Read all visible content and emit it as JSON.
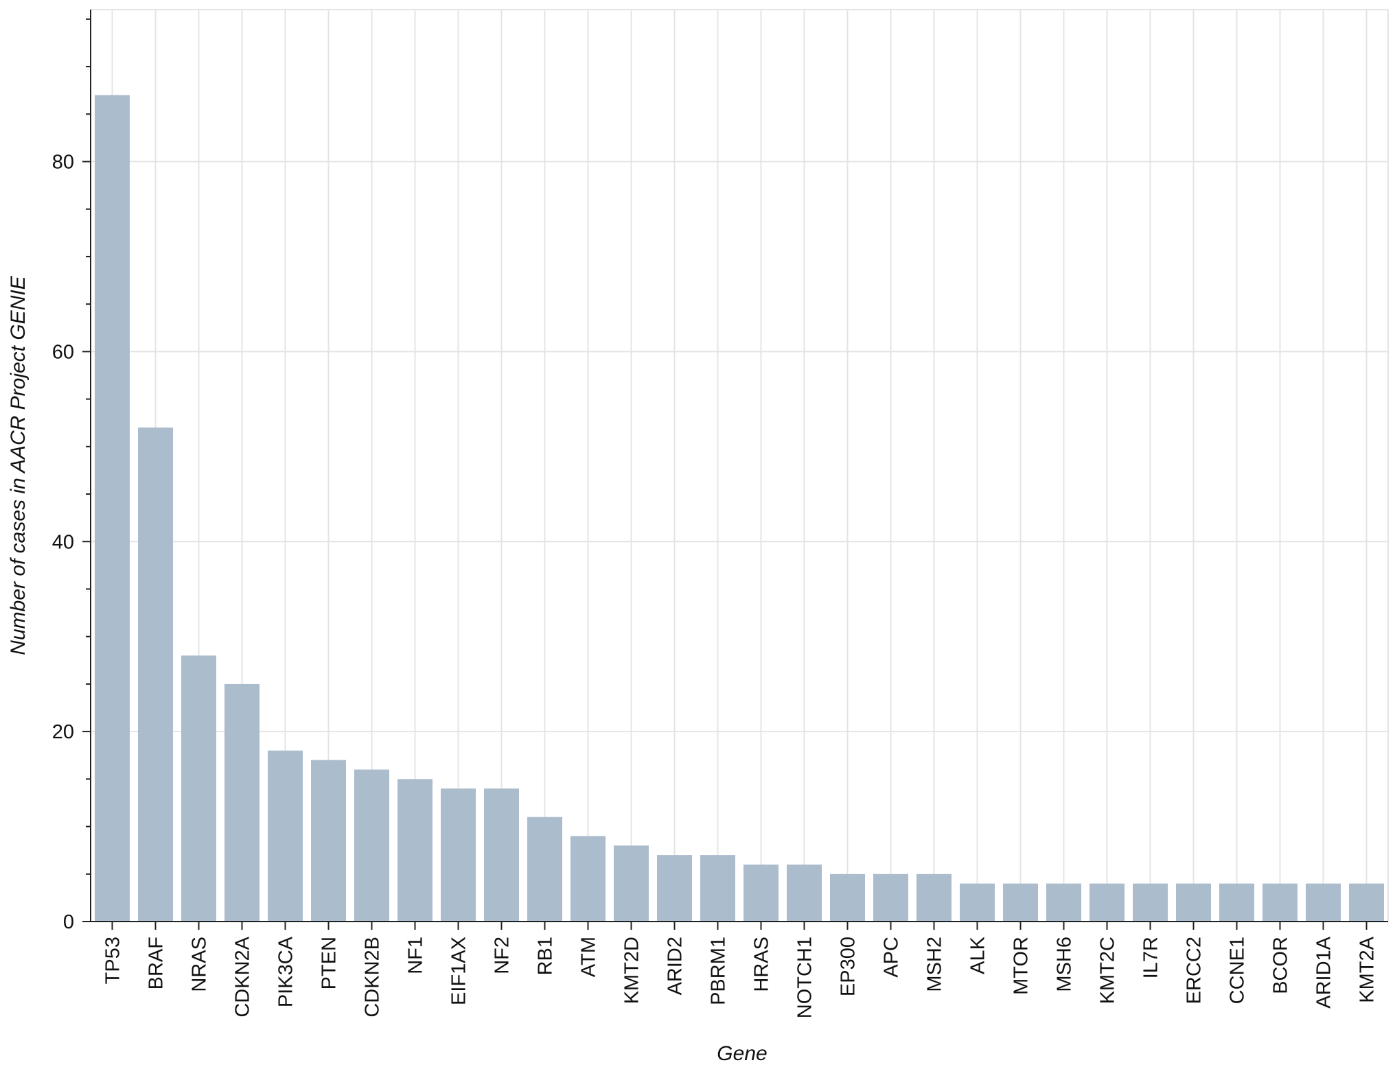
{
  "chart_data": {
    "type": "bar",
    "xlabel": "Gene",
    "ylabel": "Number of cases in AACR Project GENIE",
    "categories": [
      "TP53",
      "BRAF",
      "NRAS",
      "CDKN2A",
      "PIK3CA",
      "PTEN",
      "CDKN2B",
      "NF1",
      "EIF1AX",
      "NF2",
      "RB1",
      "ATM",
      "KMT2D",
      "ARID2",
      "PBRM1",
      "HRAS",
      "NOTCH1",
      "EP300",
      "APC",
      "MSH2",
      "ALK",
      "MTOR",
      "MSH6",
      "KMT2C",
      "IL7R",
      "ERCC2",
      "CCNE1",
      "BCOR",
      "ARID1A",
      "KMT2A"
    ],
    "values": [
      87,
      52,
      28,
      25,
      18,
      17,
      16,
      15,
      14,
      14,
      11,
      9,
      8,
      7,
      7,
      6,
      6,
      5,
      5,
      5,
      4,
      4,
      4,
      4,
      4,
      4,
      4,
      4,
      4,
      4
    ],
    "ylim": [
      0,
      96
    ],
    "yticks": [
      0,
      20,
      40,
      60,
      80
    ],
    "grid": true,
    "bar_color": "#abbccd",
    "grid_color": "#e4e4e4",
    "axis_color": "#222222"
  }
}
